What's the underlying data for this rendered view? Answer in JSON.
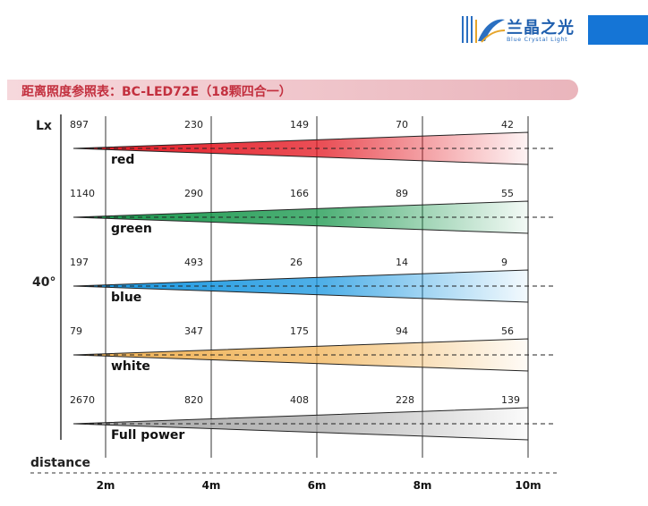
{
  "brand": {
    "name_cn": "兰晶之光",
    "name_en": "Blue Crystal Light",
    "color": "#1575d6"
  },
  "page_title": "距离照度参照表：BC-LED72E（18颗四合一）",
  "chart_data": {
    "type": "table",
    "title": "距离照度参照表：BC-LED72E（18颗四合一）",
    "unit_label": "Lx",
    "beam_angle_label": "40°",
    "xlabel": "distance",
    "distances": [
      "2m",
      "4m",
      "6m",
      "8m",
      "10m"
    ],
    "distance_values": [
      2,
      4,
      6,
      8,
      10
    ],
    "series": [
      {
        "name": "red",
        "color": "#e3151f",
        "values": [
          "897",
          "230",
          "149",
          "70",
          "42"
        ]
      },
      {
        "name": "green",
        "color": "#15964a",
        "values": [
          "1140",
          "290",
          "166",
          "89",
          "55"
        ]
      },
      {
        "name": "blue",
        "color": "#1595e0",
        "values": [
          "197",
          "493",
          "26",
          "14",
          "9"
        ]
      },
      {
        "name": "white",
        "color": "#f0b255",
        "values": [
          "79",
          "347",
          "175",
          "94",
          "56"
        ]
      },
      {
        "name": "Full power",
        "color": "#a8a8a8",
        "values": [
          "2670",
          "820",
          "408",
          "228",
          "139"
        ]
      }
    ]
  }
}
